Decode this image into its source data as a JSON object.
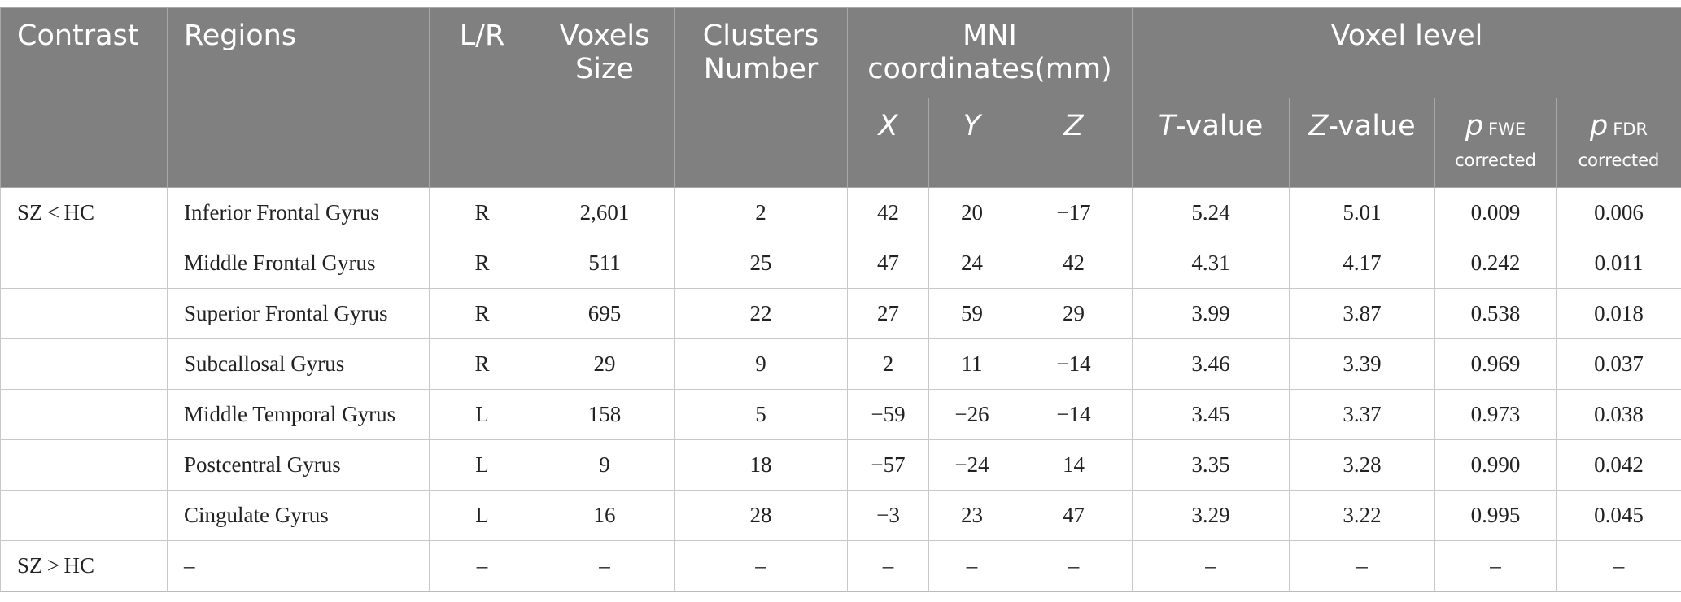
{
  "table": {
    "header1": {
      "contrast": "Contrast",
      "regions": "Regions",
      "lr": "L/R",
      "voxels_line1": "Voxels",
      "voxels_line2": "Size",
      "clusters_line1": "Clusters",
      "clusters_line2": "Number",
      "mni_line1": "MNI",
      "mni_line2": "coordinates(mm)",
      "voxel_level": "Voxel level"
    },
    "header2": {
      "x": "X",
      "y": "Y",
      "z": "Z",
      "t_letter": "T",
      "t_suffix": "-value",
      "z_letter": "Z",
      "z_suffix": "-value",
      "p_letter": "p",
      "fwe_sub": "FWE",
      "fwe_corrected": "corrected",
      "fdr_sub": "FDR",
      "fdr_corrected": "corrected"
    },
    "rows": [
      [
        "SZ < HC",
        "Inferior Frontal Gyrus",
        "R",
        "2,601",
        "2",
        "42",
        "20",
        "−17",
        "5.24",
        "5.01",
        "0.009",
        "0.006"
      ],
      [
        "",
        "Middle Frontal Gyrus",
        "R",
        "511",
        "25",
        "47",
        "24",
        "42",
        "4.31",
        "4.17",
        "0.242",
        "0.011"
      ],
      [
        "",
        "Superior Frontal Gyrus",
        "R",
        "695",
        "22",
        "27",
        "59",
        "29",
        "3.99",
        "3.87",
        "0.538",
        "0.018"
      ],
      [
        "",
        "Subcallosal Gyrus",
        "R",
        "29",
        "9",
        "2",
        "11",
        "−14",
        "3.46",
        "3.39",
        "0.969",
        "0.037"
      ],
      [
        "",
        "Middle Temporal Gyrus",
        "L",
        "158",
        "5",
        "−59",
        "−26",
        "−14",
        "3.45",
        "3.37",
        "0.973",
        "0.038"
      ],
      [
        "",
        "Postcentral Gyrus",
        "L",
        "9",
        "18",
        "−57",
        "−24",
        "14",
        "3.35",
        "3.28",
        "0.990",
        "0.042"
      ],
      [
        "",
        "Cingulate Gyrus",
        "L",
        "16",
        "28",
        "−3",
        "23",
        "47",
        "3.29",
        "3.22",
        "0.995",
        "0.045"
      ],
      [
        "SZ > HC",
        "–",
        "–",
        "–",
        "–",
        "–",
        "–",
        "–",
        "–",
        "–",
        "–",
        "–"
      ]
    ]
  }
}
